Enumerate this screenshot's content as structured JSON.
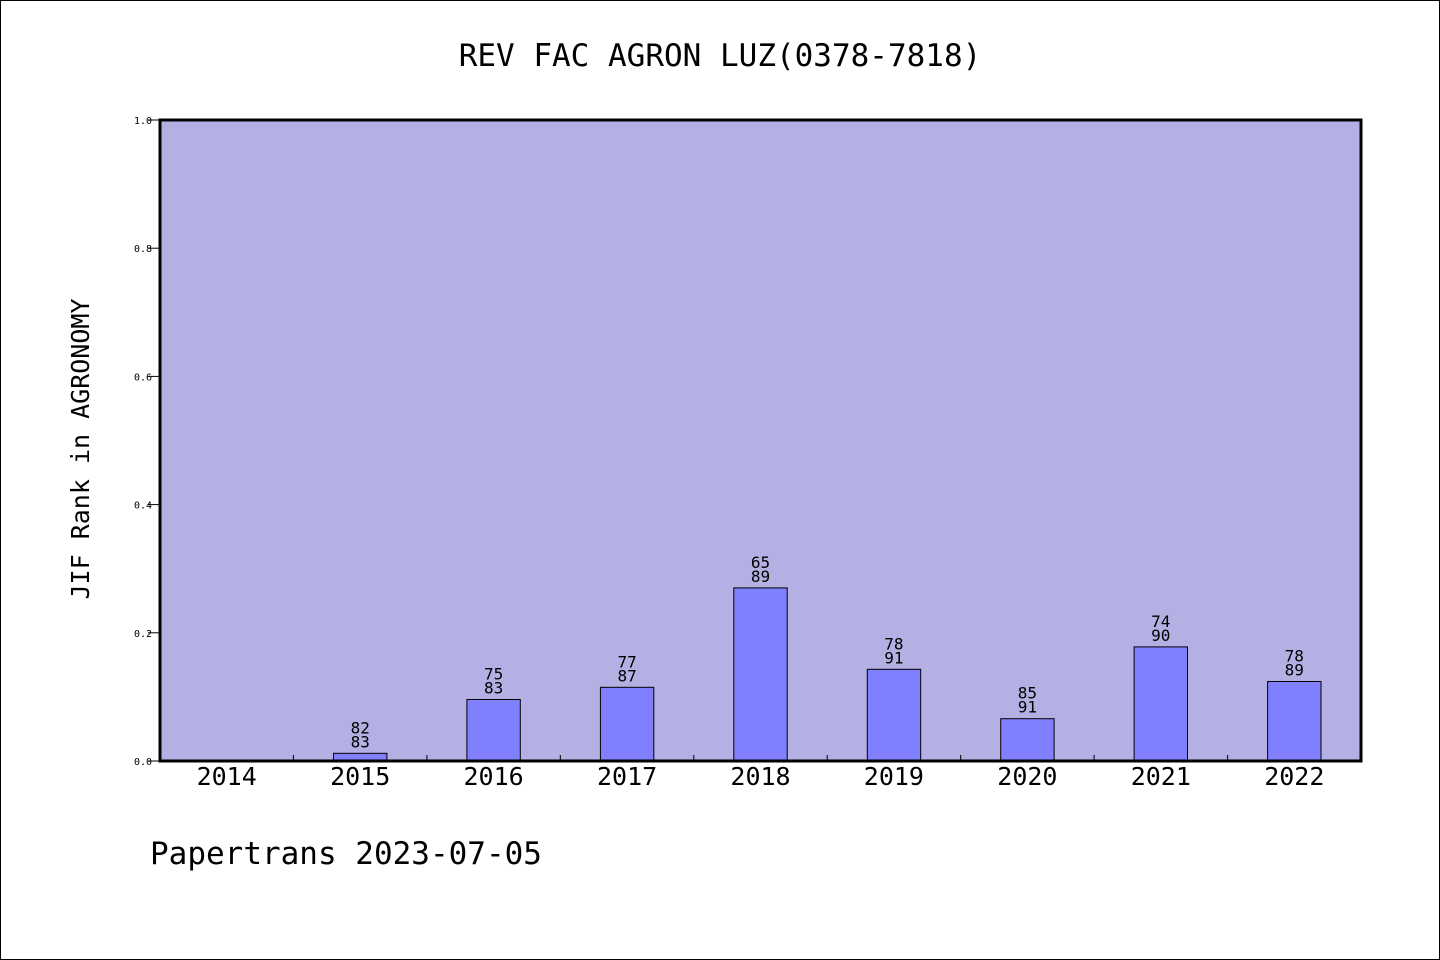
{
  "chart_data": {
    "type": "bar",
    "title": "REV FAC AGRON LUZ(0378-7818)",
    "xlabel": "",
    "ylabel": "JIF Rank in AGRONOMY",
    "categories": [
      "2014",
      "2015",
      "2016",
      "2017",
      "2018",
      "2019",
      "2020",
      "2021",
      "2022"
    ],
    "values": [
      0.0,
      0.012,
      0.096,
      0.115,
      0.27,
      0.143,
      0.066,
      0.178,
      0.124
    ],
    "bar_labels": [
      null,
      [
        "82",
        "83"
      ],
      [
        "75",
        "83"
      ],
      [
        "77",
        "87"
      ],
      [
        "65",
        "89"
      ],
      [
        "78",
        "91"
      ],
      [
        "85",
        "91"
      ],
      [
        "74",
        "90"
      ],
      [
        "78",
        "89"
      ]
    ],
    "ylim": [
      0.0,
      1.0
    ],
    "yticks": [
      "0.0",
      "0.2",
      "0.4",
      "0.6",
      "0.8",
      "1.0"
    ],
    "grid": false,
    "colors": {
      "plot_background": "#b5b0e3",
      "bar_fill": "#8080ff",
      "bar_edge": "#000000"
    }
  },
  "footer": "Papertrans 2023-07-05"
}
